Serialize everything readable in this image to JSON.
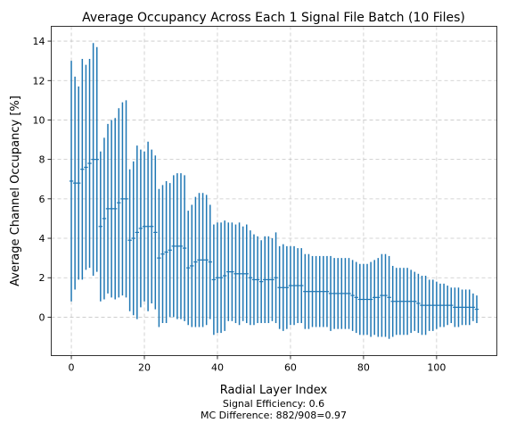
{
  "chart_data": {
    "type": "errorbar",
    "title": "Average Occupancy Across Each 1 Signal File Batch (10 Files)",
    "xlabel": "Radial Layer Index",
    "ylabel": "Average Channel Occupancy [%]",
    "caption_lines": [
      "Signal Efficiency: 0.6",
      "MC Difference: 882/908=0.97"
    ],
    "xlim": [
      -5.5,
      116.5
    ],
    "ylim": [
      -1.95,
      14.75
    ],
    "x_ticks": [
      0,
      20,
      40,
      60,
      80,
      100
    ],
    "y_ticks": [
      0,
      2,
      4,
      6,
      8,
      10,
      12,
      14
    ],
    "grid": true,
    "color": "#1f77b4",
    "x_start": 0,
    "means": [
      6.9,
      6.8,
      6.8,
      7.5,
      7.6,
      7.8,
      8.0,
      8.0,
      4.6,
      5.0,
      5.5,
      5.5,
      5.5,
      5.8,
      6.0,
      6.0,
      3.9,
      4.0,
      4.3,
      4.5,
      4.6,
      4.6,
      4.6,
      4.3,
      3.0,
      3.2,
      3.3,
      3.4,
      3.6,
      3.6,
      3.6,
      3.5,
      2.5,
      2.6,
      2.8,
      2.9,
      2.9,
      2.9,
      2.8,
      1.9,
      2.0,
      2.0,
      2.1,
      2.3,
      2.3,
      2.2,
      2.2,
      2.2,
      2.2,
      2.0,
      1.9,
      1.9,
      1.8,
      1.9,
      1.9,
      1.9,
      2.0,
      1.5,
      1.5,
      1.5,
      1.6,
      1.6,
      1.6,
      1.6,
      1.3,
      1.3,
      1.3,
      1.3,
      1.3,
      1.3,
      1.3,
      1.2,
      1.2,
      1.2,
      1.2,
      1.2,
      1.2,
      1.1,
      1.0,
      0.9,
      0.9,
      0.9,
      0.9,
      1.0,
      1.0,
      1.1,
      1.1,
      1.0,
      0.8,
      0.8,
      0.8,
      0.8,
      0.8,
      0.8,
      0.8,
      0.7,
      0.6,
      0.6,
      0.6,
      0.6,
      0.6,
      0.6,
      0.6,
      0.6,
      0.6,
      0.5,
      0.5,
      0.5,
      0.5,
      0.5,
      0.5,
      0.4
    ],
    "errors": [
      6.1,
      5.4,
      4.9,
      5.6,
      5.2,
      5.3,
      5.9,
      5.7,
      3.8,
      4.1,
      4.3,
      4.5,
      4.6,
      4.8,
      4.9,
      5.0,
      3.6,
      3.9,
      4.4,
      4.0,
      3.8,
      4.3,
      3.9,
      3.9,
      3.5,
      3.5,
      3.6,
      3.4,
      3.6,
      3.7,
      3.7,
      3.7,
      2.9,
      3.1,
      3.3,
      3.4,
      3.4,
      3.3,
      2.9,
      2.8,
      2.8,
      2.8,
      2.8,
      2.5,
      2.5,
      2.5,
      2.6,
      2.4,
      2.5,
      2.4,
      2.3,
      2.2,
      2.1,
      2.2,
      2.2,
      2.1,
      2.3,
      2.1,
      2.2,
      2.1,
      2.0,
      2.0,
      1.9,
      1.9,
      1.9,
      1.9,
      1.8,
      1.8,
      1.8,
      1.8,
      1.8,
      1.9,
      1.8,
      1.8,
      1.8,
      1.8,
      1.8,
      1.8,
      1.8,
      1.8,
      1.8,
      1.8,
      1.9,
      1.9,
      2.0,
      2.1,
      2.1,
      2.1,
      1.8,
      1.7,
      1.7,
      1.7,
      1.7,
      1.6,
      1.5,
      1.5,
      1.5,
      1.5,
      1.3,
      1.3,
      1.2,
      1.1,
      1.1,
      1.0,
      0.9,
      1.0,
      1.0,
      0.9,
      0.9,
      0.9,
      0.7,
      0.7
    ]
  }
}
